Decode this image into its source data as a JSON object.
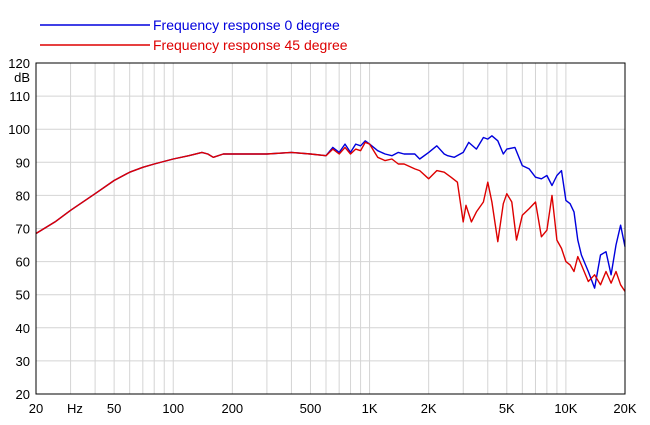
{
  "chart_data": {
    "type": "line",
    "title": "",
    "xlabel": "Hz",
    "ylabel": "dB",
    "x_scale": "log",
    "xlim": [
      20,
      20000
    ],
    "ylim": [
      20,
      120
    ],
    "grid": true,
    "legend_position": "top-left",
    "x_ticks": [
      {
        "value": 20,
        "label": "20"
      },
      {
        "value": 50,
        "label": "50"
      },
      {
        "value": 100,
        "label": "100"
      },
      {
        "value": 200,
        "label": "200"
      },
      {
        "value": 500,
        "label": "500"
      },
      {
        "value": 1000,
        "label": "1K"
      },
      {
        "value": 2000,
        "label": "2K"
      },
      {
        "value": 5000,
        "label": "5K"
      },
      {
        "value": 10000,
        "label": "10K"
      },
      {
        "value": 20000,
        "label": "20K"
      }
    ],
    "y_ticks": [
      20,
      30,
      40,
      50,
      60,
      70,
      80,
      90,
      100,
      110,
      120
    ],
    "series": [
      {
        "name": "Frequency response 0 degree",
        "color": "#0000dd",
        "x": [
          20,
          25,
          30,
          40,
          50,
          60,
          70,
          80,
          100,
          120,
          140,
          150,
          160,
          180,
          200,
          250,
          300,
          400,
          500,
          600,
          650,
          700,
          750,
          800,
          850,
          900,
          950,
          1000,
          1100,
          1200,
          1300,
          1400,
          1500,
          1700,
          1800,
          2000,
          2200,
          2400,
          2500,
          2700,
          3000,
          3200,
          3500,
          3800,
          4000,
          4200,
          4500,
          4800,
          5000,
          5500,
          6000,
          6500,
          7000,
          7500,
          8000,
          8500,
          9000,
          9500,
          10000,
          10500,
          11000,
          11500,
          12000,
          13000,
          14000,
          15000,
          16000,
          17000,
          18000,
          19000,
          20000
        ],
        "y": [
          68.5,
          72,
          75.5,
          80.5,
          84.5,
          87,
          88.5,
          89.5,
          91,
          92,
          93,
          92.5,
          91.5,
          92.5,
          92.5,
          92.5,
          92.5,
          93,
          92.5,
          92,
          94.5,
          93,
          95.5,
          93,
          95.5,
          95,
          96.5,
          95.5,
          93.5,
          92.5,
          92,
          93,
          92.5,
          92.5,
          91,
          93,
          95,
          92.5,
          92,
          91.5,
          93,
          96,
          94,
          97.5,
          97,
          98,
          96.5,
          92.5,
          94,
          94.5,
          89,
          88,
          85.5,
          85,
          86,
          83,
          86,
          87.5,
          78.5,
          77.5,
          75,
          66.5,
          62,
          57,
          52,
          62,
          63,
          56,
          65,
          71,
          64.5
        ]
      },
      {
        "name": "Frequency response 45 degree",
        "color": "#dd0000",
        "x": [
          20,
          25,
          30,
          40,
          50,
          60,
          70,
          80,
          100,
          120,
          140,
          150,
          160,
          180,
          200,
          250,
          300,
          400,
          500,
          600,
          650,
          700,
          750,
          800,
          850,
          900,
          950,
          1000,
          1100,
          1200,
          1300,
          1400,
          1500,
          1700,
          1800,
          2000,
          2200,
          2400,
          2600,
          2800,
          3000,
          3100,
          3300,
          3500,
          3800,
          4000,
          4200,
          4500,
          4800,
          5000,
          5300,
          5600,
          6000,
          6500,
          7000,
          7500,
          8000,
          8500,
          9000,
          9500,
          10000,
          10500,
          11000,
          11500,
          12000,
          13000,
          14000,
          15000,
          16000,
          17000,
          18000,
          19000,
          20000
        ],
        "y": [
          68.5,
          72,
          75.5,
          80.5,
          84.5,
          87,
          88.5,
          89.5,
          91,
          92,
          93,
          92.5,
          91.5,
          92.5,
          92.5,
          92.5,
          92.5,
          93,
          92.5,
          92,
          94,
          92.5,
          94.5,
          92.5,
          94,
          93.5,
          96,
          95.5,
          91.5,
          90.5,
          91,
          89.5,
          89.5,
          88,
          87.5,
          85,
          87.5,
          87,
          85.5,
          84,
          72,
          77,
          72,
          75,
          78,
          84,
          78,
          66,
          77.5,
          80.5,
          78,
          66.5,
          74,
          76,
          78,
          67.5,
          69.5,
          80,
          66.5,
          64,
          60,
          59,
          57,
          61.5,
          59,
          54,
          56,
          53,
          57,
          53.5,
          57,
          53,
          51
        ]
      }
    ]
  }
}
